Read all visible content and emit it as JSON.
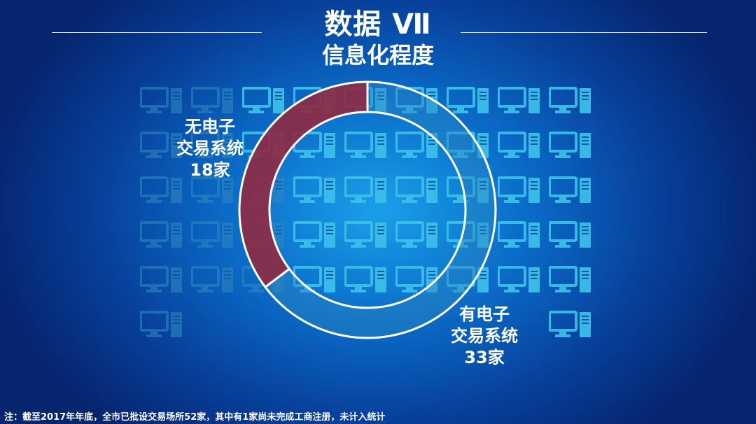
{
  "header": {
    "title": "数据 Ⅶ",
    "subtitle": "信息化程度"
  },
  "icon_grid": {
    "icon": "computer-icon",
    "total": 51,
    "highlighted": 33,
    "highlight_color": "#3bbfe8",
    "dim_color": "#2f86bf"
  },
  "chart_data": {
    "type": "pie",
    "variant": "donut",
    "title": "",
    "series": [
      {
        "name": "无电子交易系统",
        "label_lines": [
          "无电子",
          "交易系统",
          "18家"
        ],
        "value": 18,
        "color": "#8e2a45"
      },
      {
        "name": "有电子交易系统",
        "label_lines": [
          "有电子",
          "交易系统",
          "33家"
        ],
        "value": 33,
        "color": "#2a86c0"
      }
    ],
    "ring_stroke": "#ffffff"
  },
  "footnote": "注：截至2017年年底，全市已批设交易场所52家，其中有1家尚未完成工商注册，未计入统计"
}
